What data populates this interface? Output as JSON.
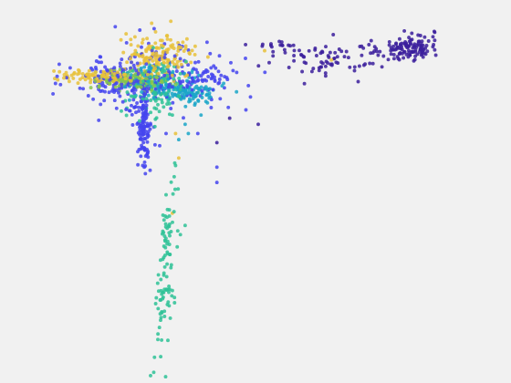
{
  "figure": {
    "background": "#f1f1f1"
  },
  "chart_data": {
    "type": "scatter",
    "title": "",
    "xlabel": "",
    "ylabel": "",
    "axes_visible": false,
    "grid": false,
    "legend": "none",
    "xlim": [
      -4.2,
      9.0
    ],
    "ylim": [
      -9.0,
      1.8
    ],
    "marker_size": 3.5,
    "marker_alpha": 0.85,
    "series": [
      {
        "color": "#3b1f9c",
        "clusters": [
          {
            "n": 120,
            "cx": 6.9,
            "cy": 0.9,
            "sx": 0.45,
            "sy": 0.22,
            "rot": 0.18
          },
          {
            "n": 70,
            "cx": 4.6,
            "cy": 0.55,
            "sx": 0.85,
            "sy": 0.3,
            "rot": 0.05
          },
          {
            "n": 20,
            "cx": 3.0,
            "cy": 0.95,
            "sx": 0.45,
            "sy": 0.15,
            "rot": 0.0
          }
        ],
        "points": [
          [
            2.2,
            -1.6
          ],
          [
            0.9,
            -2.2
          ],
          [
            1.3,
            -1.4
          ],
          [
            1.8,
            1.0
          ],
          [
            4.7,
            0.4
          ]
        ]
      },
      {
        "color": "#4444ee",
        "clusters": [
          {
            "n": 200,
            "cx": -0.9,
            "cy": -0.1,
            "sx": 1.3,
            "sy": 0.6,
            "rot": 0.0
          },
          {
            "n": 130,
            "cx": -1.4,
            "cy": -1.6,
            "sx": 0.12,
            "sy": 0.75,
            "rot": 0.0
          },
          {
            "n": 90,
            "cx": -2.2,
            "cy": -0.1,
            "sx": 0.55,
            "sy": 0.22,
            "rot": 0.0
          },
          {
            "n": 40,
            "cx": 0.5,
            "cy": -0.1,
            "sx": 0.6,
            "sy": 0.2,
            "rot": 0.0
          }
        ],
        "points": [
          [
            0.9,
            -3.5
          ],
          [
            0.9,
            -3.0
          ],
          [
            -0.9,
            -2.3
          ],
          [
            -1.2,
            -3.1
          ],
          [
            0.3,
            -1.9
          ],
          [
            -0.7,
            -1.9
          ]
        ]
      },
      {
        "color": "#1aa6c8",
        "clusters": [
          {
            "n": 140,
            "cx": -0.6,
            "cy": -0.3,
            "sx": 0.75,
            "sy": 0.28,
            "rot": -0.15
          },
          {
            "n": 40,
            "cx": 0.2,
            "cy": -0.6,
            "sx": 0.3,
            "sy": 0.15,
            "rot": 0.0
          }
        ],
        "points": [
          [
            -0.3,
            -2.1
          ],
          [
            0.0,
            -1.9
          ],
          [
            0.4,
            -1.3
          ],
          [
            0.6,
            -0.9
          ],
          [
            -0.1,
            -1.6
          ]
        ]
      },
      {
        "color": "#2ec296",
        "clusters": [
          {
            "n": 120,
            "cx": -1.0,
            "cy": -0.5,
            "sx": 0.5,
            "sy": 0.5,
            "rot": 0.0
          },
          {
            "n": 100,
            "cx": -0.72,
            "cy": -6.4,
            "sx": 0.12,
            "sy": 1.5,
            "rot": -0.06
          }
        ],
        "points": [
          [
            -0.7,
            -3.9
          ],
          [
            -0.45,
            -4.45
          ],
          [
            -0.25,
            -5.2
          ],
          [
            -0.35,
            -5.6
          ],
          [
            -0.1,
            -4.9
          ],
          [
            -1.1,
            0.9
          ],
          [
            -0.5,
            -1.3
          ]
        ]
      },
      {
        "color": "#86c64e",
        "clusters": [
          {
            "n": 160,
            "cx": -1.7,
            "cy": -0.15,
            "sx": 0.55,
            "sy": 0.15,
            "rot": 0.0
          }
        ],
        "points": [
          [
            -0.8,
            0.15
          ],
          [
            -0.4,
            -0.3
          ],
          [
            -1.0,
            0.3
          ]
        ]
      },
      {
        "color": "#e8c13a",
        "clusters": [
          {
            "n": 150,
            "cx": -0.95,
            "cy": 0.6,
            "sx": 0.6,
            "sy": 0.35,
            "rot": 0.0
          },
          {
            "n": 110,
            "cx": -2.55,
            "cy": -0.05,
            "sx": 0.85,
            "sy": 0.1,
            "rot": -0.05
          }
        ],
        "points": [
          [
            -0.3,
            -2.7
          ],
          [
            -0.4,
            -1.9
          ],
          [
            -0.5,
            -4.5
          ],
          [
            2.4,
            0.8
          ],
          [
            4.5,
            0.5
          ],
          [
            -1.3,
            1.2
          ]
        ]
      }
    ]
  }
}
